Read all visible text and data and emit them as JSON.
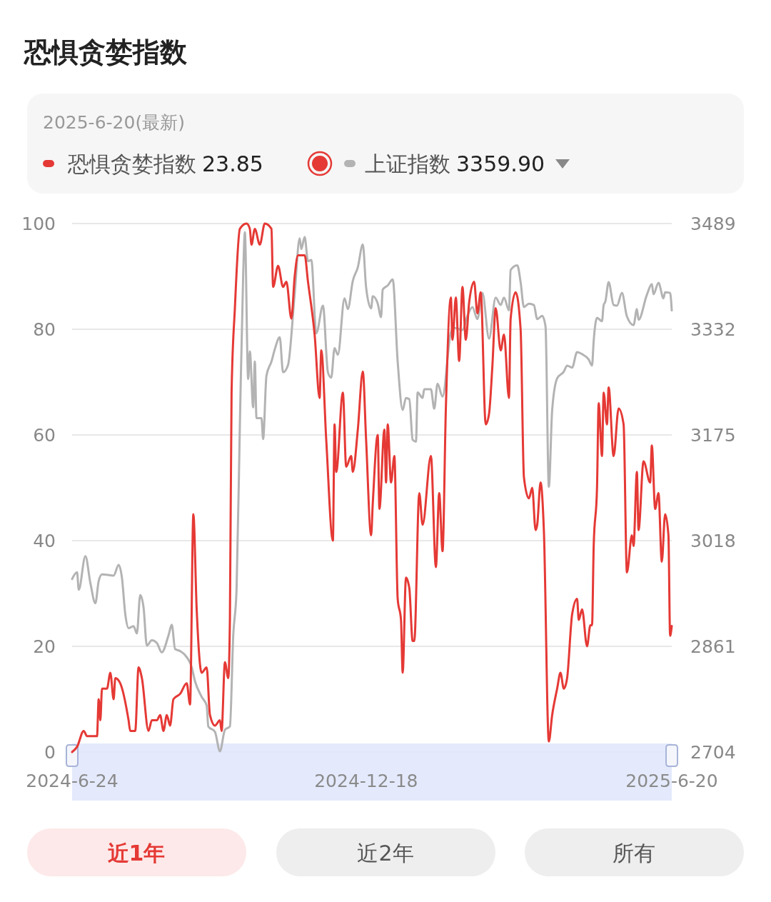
{
  "chart_data": {
    "type": "line",
    "title": "恐惧贪婪指数",
    "subtitle": "2025-6-20(最新)",
    "annotations": [
      "23.85",
      "3359.90",
      "近1年",
      "近2年",
      "所有"
    ],
    "xlim": [
      "2024-06-24",
      "2025-06-20"
    ],
    "xticks": [
      {
        "value": "2024-06-24",
        "label": "2024-6-24"
      },
      {
        "value": "2024-12-18",
        "label": "2024-12-18"
      },
      {
        "value": "2025-06-20",
        "label": "2025-6-20"
      }
    ],
    "ylim": [
      0,
      100
    ],
    "yticks": [
      0,
      20,
      40,
      60,
      80,
      100
    ],
    "y2lim": [
      2704,
      3489
    ],
    "y2ticks": [
      2704,
      2861,
      3018,
      3175,
      3332,
      3489
    ],
    "grid": "y",
    "legend": "top",
    "marker": "none",
    "line_style": "solid",
    "series": [
      {
        "name": "上证指数",
        "color": "#b3b3b3",
        "axis": "y2",
        "x": [
          "2024-06-24",
          "2024-06-27",
          "2024-06-28",
          "2024-07-02",
          "2024-07-05",
          "2024-07-08",
          "2024-07-10",
          "2024-07-12",
          "2024-07-19",
          "2024-07-22",
          "2024-07-24",
          "2024-07-26",
          "2024-07-28",
          "2024-07-31",
          "2024-08-02",
          "2024-08-04",
          "2024-08-06",
          "2024-08-08",
          "2024-08-11",
          "2024-08-14",
          "2024-08-17",
          "2024-08-21",
          "2024-08-23",
          "2024-08-25",
          "2024-08-28",
          "2024-08-31",
          "2024-09-04",
          "2024-09-06",
          "2024-09-10",
          "2024-09-13",
          "2024-09-14",
          "2024-09-18",
          "2024-09-21",
          "2024-09-24",
          "2024-09-27",
          "2024-09-29",
          "2024-10-01",
          "2024-10-03",
          "2024-10-05",
          "2024-10-06",
          "2024-10-08",
          "2024-10-09",
          "2024-10-11",
          "2024-10-12",
          "2024-10-13",
          "2024-10-16",
          "2024-10-17",
          "2024-10-19",
          "2024-10-22",
          "2024-10-24",
          "2024-10-27",
          "2024-10-29",
          "2024-11-01",
          "2024-11-05",
          "2024-11-08",
          "2024-11-09",
          "2024-11-11",
          "2024-11-13",
          "2024-11-15",
          "2024-11-18",
          "2024-11-22",
          "2024-11-25",
          "2024-11-27",
          "2024-11-29",
          "2024-12-01",
          "2024-12-05",
          "2024-12-07",
          "2024-12-10",
          "2024-12-13",
          "2024-12-16",
          "2024-12-18",
          "2024-12-21",
          "2024-12-22",
          "2024-12-25",
          "2024-12-27",
          "2024-12-28",
          "2024-12-31",
          "2025-01-03",
          "2025-01-06",
          "2025-01-09",
          "2025-01-11",
          "2025-01-13",
          "2025-01-15",
          "2025-01-17",
          "2025-01-18",
          "2025-01-21",
          "2025-01-22",
          "2025-01-26",
          "2025-01-28",
          "2025-01-30",
          "2025-02-02",
          "2025-02-07",
          "2025-02-09",
          "2025-02-14",
          "2025-02-17",
          "2025-02-20",
          "2025-02-23",
          "2025-02-26",
          "2025-03-02",
          "2025-03-06",
          "2025-03-09",
          "2025-03-11",
          "2025-03-14",
          "2025-03-15",
          "2025-03-19",
          "2025-03-21",
          "2025-03-23",
          "2025-03-26",
          "2025-03-29",
          "2025-03-31",
          "2025-04-03",
          "2025-04-05",
          "2025-04-07",
          "2025-04-09",
          "2025-04-12",
          "2025-04-16",
          "2025-04-18",
          "2025-04-21",
          "2025-04-24",
          "2025-04-27",
          "2025-05-01",
          "2025-05-03",
          "2025-05-04",
          "2025-05-06",
          "2025-05-09",
          "2025-05-10",
          "2025-05-11",
          "2025-05-13",
          "2025-05-16",
          "2025-05-18",
          "2025-05-21",
          "2025-05-24",
          "2025-05-28",
          "2025-05-30",
          "2025-05-31",
          "2025-06-05",
          "2025-06-08",
          "2025-06-09",
          "2025-06-12",
          "2025-06-15",
          "2025-06-16",
          "2025-06-19",
          "2025-06-20"
        ],
        "values": [
          2961,
          2971,
          2945,
          2995,
          2955,
          2925,
          2958,
          2968,
          2966,
          2982,
          2963,
          2909,
          2888,
          2891,
          2880,
          2937,
          2919,
          2862,
          2870,
          2866,
          2852,
          2877,
          2893,
          2857,
          2854,
          2848,
          2830,
          2809,
          2786,
          2773,
          2742,
          2734,
          2705,
          2737,
          2742,
          2877,
          2945,
          3190,
          3414,
          3476,
          3258,
          3299,
          3216,
          3284,
          3200,
          3200,
          3169,
          3263,
          3284,
          3302,
          3320,
          3268,
          3279,
          3385,
          3467,
          3451,
          3469,
          3433,
          3435,
          3326,
          3367,
          3268,
          3260,
          3304,
          3294,
          3378,
          3362,
          3404,
          3424,
          3458,
          3394,
          3363,
          3381,
          3370,
          3350,
          3391,
          3397,
          3406,
          3284,
          3212,
          3230,
          3228,
          3168,
          3165,
          3238,
          3230,
          3243,
          3243,
          3214,
          3251,
          3232,
          3327,
          3334,
          3331,
          3352,
          3365,
          3347,
          3386,
          3318,
          3379,
          3368,
          3379,
          3360,
          3420,
          3427,
          3402,
          3365,
          3370,
          3368,
          3347,
          3352,
          3336,
          3098,
          3212,
          3259,
          3269,
          3278,
          3275,
          3298,
          3295,
          3287,
          3278,
          3315,
          3349,
          3344,
          3368,
          3373,
          3402,
          3368,
          3367,
          3386,
          3351,
          3338,
          3362,
          3346,
          3383,
          3399,
          3384,
          3401,
          3378,
          3387,
          3386,
          3359.9
        ]
      },
      {
        "name": "恐惧贪婪指数",
        "color": "#e53935",
        "x": [
          "2024-06-24",
          "2024-06-27",
          "2024-07-01",
          "2024-07-03",
          "2024-07-09",
          "2024-07-10",
          "2024-07-11",
          "2024-07-12",
          "2024-07-15",
          "2024-07-17",
          "2024-07-19",
          "2024-07-20",
          "2024-07-23",
          "2024-07-28",
          "2024-07-29",
          "2024-08-01",
          "2024-08-03",
          "2024-08-05",
          "2024-08-09",
          "2024-08-11",
          "2024-08-14",
          "2024-08-16",
          "2024-08-18",
          "2024-08-20",
          "2024-08-22",
          "2024-08-24",
          "2024-08-28",
          "2024-09-01",
          "2024-09-03",
          "2024-09-05",
          "2024-09-07",
          "2024-09-10",
          "2024-09-13",
          "2024-09-15",
          "2024-09-18",
          "2024-09-21",
          "2024-09-22",
          "2024-09-24",
          "2024-09-26",
          "2024-09-27",
          "2024-09-28",
          "2024-09-30",
          "2024-10-03",
          "2024-10-07",
          "2024-10-09",
          "2024-10-10",
          "2024-10-12",
          "2024-10-15",
          "2024-10-18",
          "2024-10-22",
          "2024-10-23",
          "2024-10-26",
          "2024-10-29",
          "2024-10-31",
          "2024-11-03",
          "2024-11-05",
          "2024-11-07",
          "2024-11-11",
          "2024-11-13",
          "2024-11-17",
          "2024-11-20",
          "2024-11-21",
          "2024-11-24",
          "2024-11-28",
          "2024-11-29",
          "2024-11-30",
          "2024-12-04",
          "2024-12-06",
          "2024-12-09",
          "2024-12-10",
          "2024-12-13",
          "2024-12-16",
          "2024-12-18",
          "2024-12-21",
          "2024-12-22",
          "2024-12-25",
          "2024-12-26",
          "2024-12-29",
          "2024-12-30",
          "2024-12-31",
          "2025-01-02",
          "2025-01-04",
          "2025-01-06",
          "2025-01-08",
          "2025-01-09",
          "2025-01-11",
          "2025-01-13",
          "2025-01-15",
          "2025-01-16",
          "2025-01-19",
          "2025-01-21",
          "2025-01-26",
          "2025-01-29",
          "2025-01-31",
          "2025-02-02",
          "2025-02-04",
          "2025-02-07",
          "2025-02-08",
          "2025-02-10",
          "2025-02-12",
          "2025-02-14",
          "2025-02-16",
          "2025-02-18",
          "2025-02-21",
          "2025-02-23",
          "2025-02-25",
          "2025-02-28",
          "2025-03-02",
          "2025-03-04",
          "2025-03-06",
          "2025-03-09",
          "2025-03-11",
          "2025-03-14",
          "2025-03-15",
          "2025-03-18",
          "2025-03-21",
          "2025-03-23",
          "2025-03-26",
          "2025-03-28",
          "2025-03-30",
          "2025-03-31",
          "2025-04-02",
          "2025-04-04",
          "2025-04-07",
          "2025-04-09",
          "2025-04-12",
          "2025-04-14",
          "2025-04-16",
          "2025-04-18",
          "2025-04-21",
          "2025-04-24",
          "2025-04-25",
          "2025-04-27",
          "2025-04-30",
          "2025-05-02",
          "2025-05-03",
          "2025-05-04",
          "2025-05-06",
          "2025-05-07",
          "2025-05-09",
          "2025-05-10",
          "2025-05-12",
          "2025-05-13",
          "2025-05-16",
          "2025-05-19",
          "2025-05-22",
          "2025-05-24",
          "2025-05-27",
          "2025-05-28",
          "2025-05-30",
          "2025-05-31",
          "2025-06-03",
          "2025-06-07",
          "2025-06-08",
          "2025-06-10",
          "2025-06-12",
          "2025-06-14",
          "2025-06-16",
          "2025-06-18",
          "2025-06-19",
          "2025-06-20"
        ],
        "values": [
          0,
          1,
          4,
          3,
          3,
          10,
          6,
          12,
          12,
          15,
          10,
          14,
          13,
          6,
          4,
          4,
          16,
          14,
          4,
          6,
          6,
          7,
          4,
          7,
          5,
          10,
          11,
          13,
          9,
          45,
          27,
          15,
          16,
          7,
          5,
          6,
          4,
          17,
          14,
          25,
          68,
          84,
          99,
          100,
          99,
          96,
          99,
          96,
          100,
          99,
          88,
          92,
          88,
          89,
          82,
          90,
          94,
          94,
          89,
          79,
          67,
          76,
          59,
          40,
          62,
          53,
          68,
          54,
          56,
          53,
          61,
          72,
          59,
          41,
          47,
          60,
          46,
          61,
          51,
          62,
          51,
          56,
          29,
          25,
          15,
          33,
          31,
          21,
          21,
          49,
          43,
          56,
          35,
          49,
          38,
          65,
          86,
          78,
          86,
          74,
          88,
          78,
          85,
          89,
          83,
          87,
          62,
          64,
          73,
          84,
          76,
          79,
          67,
          82,
          87,
          80,
          52,
          48,
          50,
          42,
          43,
          51,
          42,
          2,
          7,
          12,
          15,
          12,
          14,
          26,
          29,
          25,
          27,
          20,
          24,
          24,
          39,
          50,
          66,
          56,
          68,
          62,
          69,
          56,
          65,
          62,
          34,
          41,
          39,
          53,
          42,
          55,
          51,
          58,
          46,
          49,
          36,
          45,
          41,
          22,
          23.85
        ]
      }
    ]
  }
}
